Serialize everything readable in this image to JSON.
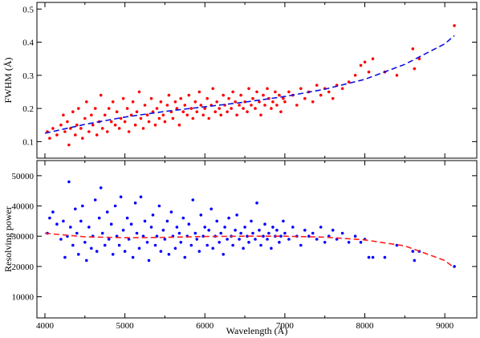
{
  "chart_data": [
    {
      "type": "scatter",
      "xlabel": "",
      "ylabel": "FWHM (Å)",
      "xlim": [
        3900,
        9400
      ],
      "ylim": [
        0.05,
        0.52
      ],
      "xticks": [
        4000,
        5000,
        6000,
        7000,
        8000,
        9000
      ],
      "yticks": [
        0.1,
        0.2,
        0.3,
        0.4,
        0.5
      ],
      "ytick_labels": [
        "0.1",
        "0.2",
        "0.3",
        "0.4",
        "0.5"
      ],
      "grid": false,
      "series": [
        {
          "kind": "points",
          "color": "#ff0000",
          "marker": "circle",
          "x": [
            4030,
            4060,
            4100,
            4150,
            4200,
            4230,
            4250,
            4280,
            4300,
            4320,
            4350,
            4380,
            4400,
            4420,
            4450,
            4470,
            4500,
            4520,
            4550,
            4580,
            4600,
            4630,
            4650,
            4680,
            4700,
            4720,
            4750,
            4780,
            4800,
            4830,
            4850,
            4880,
            4900,
            4930,
            4950,
            4980,
            5000,
            5030,
            5050,
            5080,
            5100,
            5130,
            5150,
            5180,
            5200,
            5230,
            5250,
            5280,
            5300,
            5330,
            5350,
            5380,
            5400,
            5430,
            5450,
            5480,
            5500,
            5530,
            5550,
            5580,
            5600,
            5630,
            5650,
            5680,
            5700,
            5730,
            5750,
            5780,
            5800,
            5830,
            5850,
            5880,
            5900,
            5930,
            5950,
            5980,
            6000,
            6030,
            6050,
            6080,
            6100,
            6130,
            6150,
            6180,
            6200,
            6230,
            6250,
            6280,
            6300,
            6330,
            6350,
            6380,
            6400,
            6430,
            6450,
            6480,
            6500,
            6530,
            6550,
            6580,
            6600,
            6630,
            6650,
            6680,
            6700,
            6730,
            6750,
            6780,
            6800,
            6830,
            6850,
            6880,
            6900,
            6930,
            6950,
            6980,
            7000,
            7050,
            7100,
            7150,
            7200,
            7250,
            7300,
            7350,
            7400,
            7450,
            7500,
            7550,
            7600,
            7650,
            7720,
            7800,
            7880,
            7950,
            8000,
            8050,
            8100,
            8250,
            8400,
            8600,
            8620,
            8680,
            9120
          ],
          "y": [
            0.13,
            0.11,
            0.14,
            0.12,
            0.15,
            0.18,
            0.13,
            0.16,
            0.09,
            0.14,
            0.19,
            0.12,
            0.15,
            0.2,
            0.14,
            0.11,
            0.17,
            0.22,
            0.13,
            0.18,
            0.15,
            0.2,
            0.12,
            0.16,
            0.24,
            0.14,
            0.18,
            0.13,
            0.2,
            0.16,
            0.22,
            0.15,
            0.19,
            0.14,
            0.17,
            0.23,
            0.16,
            0.2,
            0.13,
            0.18,
            0.22,
            0.15,
            0.19,
            0.25,
            0.17,
            0.14,
            0.21,
            0.18,
            0.16,
            0.23,
            0.19,
            0.15,
            0.2,
            0.17,
            0.22,
            0.18,
            0.16,
            0.21,
            0.24,
            0.19,
            0.17,
            0.22,
            0.2,
            0.15,
            0.23,
            0.19,
            0.21,
            0.18,
            0.24,
            0.2,
            0.17,
            0.22,
            0.19,
            0.25,
            0.21,
            0.18,
            0.2,
            0.23,
            0.17,
            0.21,
            0.26,
            0.19,
            0.22,
            0.2,
            0.18,
            0.24,
            0.21,
            0.19,
            0.23,
            0.2,
            0.25,
            0.22,
            0.18,
            0.21,
            0.24,
            0.2,
            0.22,
            0.19,
            0.26,
            0.21,
            0.23,
            0.2,
            0.25,
            0.22,
            0.18,
            0.24,
            0.21,
            0.26,
            0.23,
            0.2,
            0.22,
            0.25,
            0.21,
            0.24,
            0.19,
            0.23,
            0.22,
            0.25,
            0.24,
            0.21,
            0.26,
            0.23,
            0.25,
            0.22,
            0.27,
            0.24,
            0.26,
            0.25,
            0.23,
            0.27,
            0.26,
            0.28,
            0.3,
            0.33,
            0.34,
            0.31,
            0.35,
            0.31,
            0.3,
            0.38,
            0.32,
            0.35,
            0.45
          ]
        },
        {
          "kind": "fit",
          "color": "#1010e0",
          "dash": "dashed",
          "x": [
            4000,
            4500,
            5000,
            5500,
            6000,
            6500,
            7000,
            7500,
            8000,
            8500,
            9000,
            9120
          ],
          "y": [
            0.125,
            0.152,
            0.174,
            0.191,
            0.205,
            0.219,
            0.236,
            0.258,
            0.288,
            0.333,
            0.395,
            0.42
          ]
        }
      ]
    },
    {
      "type": "scatter",
      "xlabel": "Wavelength (Å)",
      "ylabel": "Resolving power",
      "xlim": [
        3900,
        9400
      ],
      "ylim": [
        3000,
        55000
      ],
      "xticks": [
        4000,
        5000,
        6000,
        7000,
        8000,
        9000
      ],
      "xtick_labels": [
        "4000",
        "5000",
        "6000",
        "7000",
        "8000",
        "9000"
      ],
      "yticks": [
        10000,
        20000,
        30000,
        40000,
        50000
      ],
      "ytick_labels": [
        "10000",
        "20000",
        "30000",
        "40000",
        "50000"
      ],
      "grid": false,
      "series": [
        {
          "kind": "points",
          "color": "#0000ff",
          "marker": "circle",
          "x": [
            4030,
            4060,
            4100,
            4150,
            4200,
            4230,
            4250,
            4280,
            4300,
            4320,
            4350,
            4380,
            4400,
            4420,
            4450,
            4470,
            4500,
            4520,
            4550,
            4580,
            4600,
            4630,
            4650,
            4680,
            4700,
            4720,
            4750,
            4780,
            4800,
            4830,
            4850,
            4880,
            4900,
            4930,
            4950,
            4980,
            5000,
            5030,
            5050,
            5080,
            5100,
            5130,
            5150,
            5180,
            5200,
            5230,
            5250,
            5280,
            5300,
            5330,
            5350,
            5380,
            5400,
            5430,
            5450,
            5480,
            5500,
            5530,
            5550,
            5580,
            5600,
            5630,
            5650,
            5680,
            5700,
            5730,
            5750,
            5780,
            5800,
            5830,
            5850,
            5880,
            5900,
            5930,
            5950,
            5980,
            6000,
            6030,
            6050,
            6080,
            6100,
            6130,
            6150,
            6180,
            6200,
            6230,
            6250,
            6280,
            6300,
            6330,
            6350,
            6380,
            6400,
            6430,
            6450,
            6480,
            6500,
            6530,
            6550,
            6580,
            6600,
            6630,
            6650,
            6680,
            6700,
            6730,
            6750,
            6780,
            6800,
            6830,
            6850,
            6880,
            6900,
            6930,
            6950,
            6980,
            7000,
            7050,
            7100,
            7150,
            7200,
            7250,
            7300,
            7350,
            7400,
            7450,
            7500,
            7550,
            7600,
            7650,
            7720,
            7800,
            7880,
            7950,
            8000,
            8050,
            8100,
            8250,
            8400,
            8600,
            8620,
            8680,
            9120
          ],
          "y": [
            31000,
            36000,
            38000,
            34000,
            29000,
            35000,
            23000,
            30000,
            48000,
            33000,
            27000,
            39000,
            31000,
            24000,
            35000,
            40000,
            28000,
            22000,
            33000,
            26000,
            30000,
            42000,
            25000,
            36000,
            46000,
            31000,
            27000,
            38000,
            29000,
            34000,
            24000,
            40000,
            30000,
            27000,
            43000,
            32000,
            25000,
            36000,
            29000,
            34000,
            23000,
            41000,
            31000,
            26000,
            43000,
            30000,
            35000,
            28000,
            22000,
            33000,
            37000,
            27000,
            30000,
            40000,
            25000,
            32000,
            29000,
            35000,
            24000,
            38000,
            30000,
            26000,
            33000,
            31000,
            28000,
            36000,
            23000,
            30000,
            34000,
            27000,
            42000,
            31000,
            29000,
            25000,
            37000,
            30000,
            33000,
            27000,
            32000,
            39000,
            26000,
            30000,
            35000,
            28000,
            31000,
            24000,
            33000,
            29000,
            36000,
            30000,
            27000,
            32000,
            37000,
            29000,
            31000,
            26000,
            33000,
            30000,
            28000,
            35000,
            31000,
            29000,
            41000,
            32000,
            27000,
            30000,
            34000,
            29000,
            31000,
            26000,
            33000,
            30000,
            32000,
            28000,
            30000,
            35000,
            31000,
            29000,
            33000,
            30000,
            27000,
            32000,
            30000,
            31000,
            29000,
            33000,
            28000,
            30000,
            32000,
            29000,
            31000,
            28000,
            30000,
            28000,
            29000,
            23000,
            23000,
            23000,
            27000,
            25000,
            22000,
            25000,
            20000
          ]
        },
        {
          "kind": "fit",
          "color": "#ff2020",
          "dash": "dashed",
          "x": [
            4000,
            4500,
            5000,
            5500,
            6000,
            6500,
            7000,
            7500,
            8000,
            8500,
            9000,
            9120
          ],
          "y": [
            31000,
            29800,
            29500,
            29600,
            29900,
            30000,
            30000,
            29700,
            28800,
            26800,
            22000,
            19500
          ]
        }
      ]
    }
  ]
}
